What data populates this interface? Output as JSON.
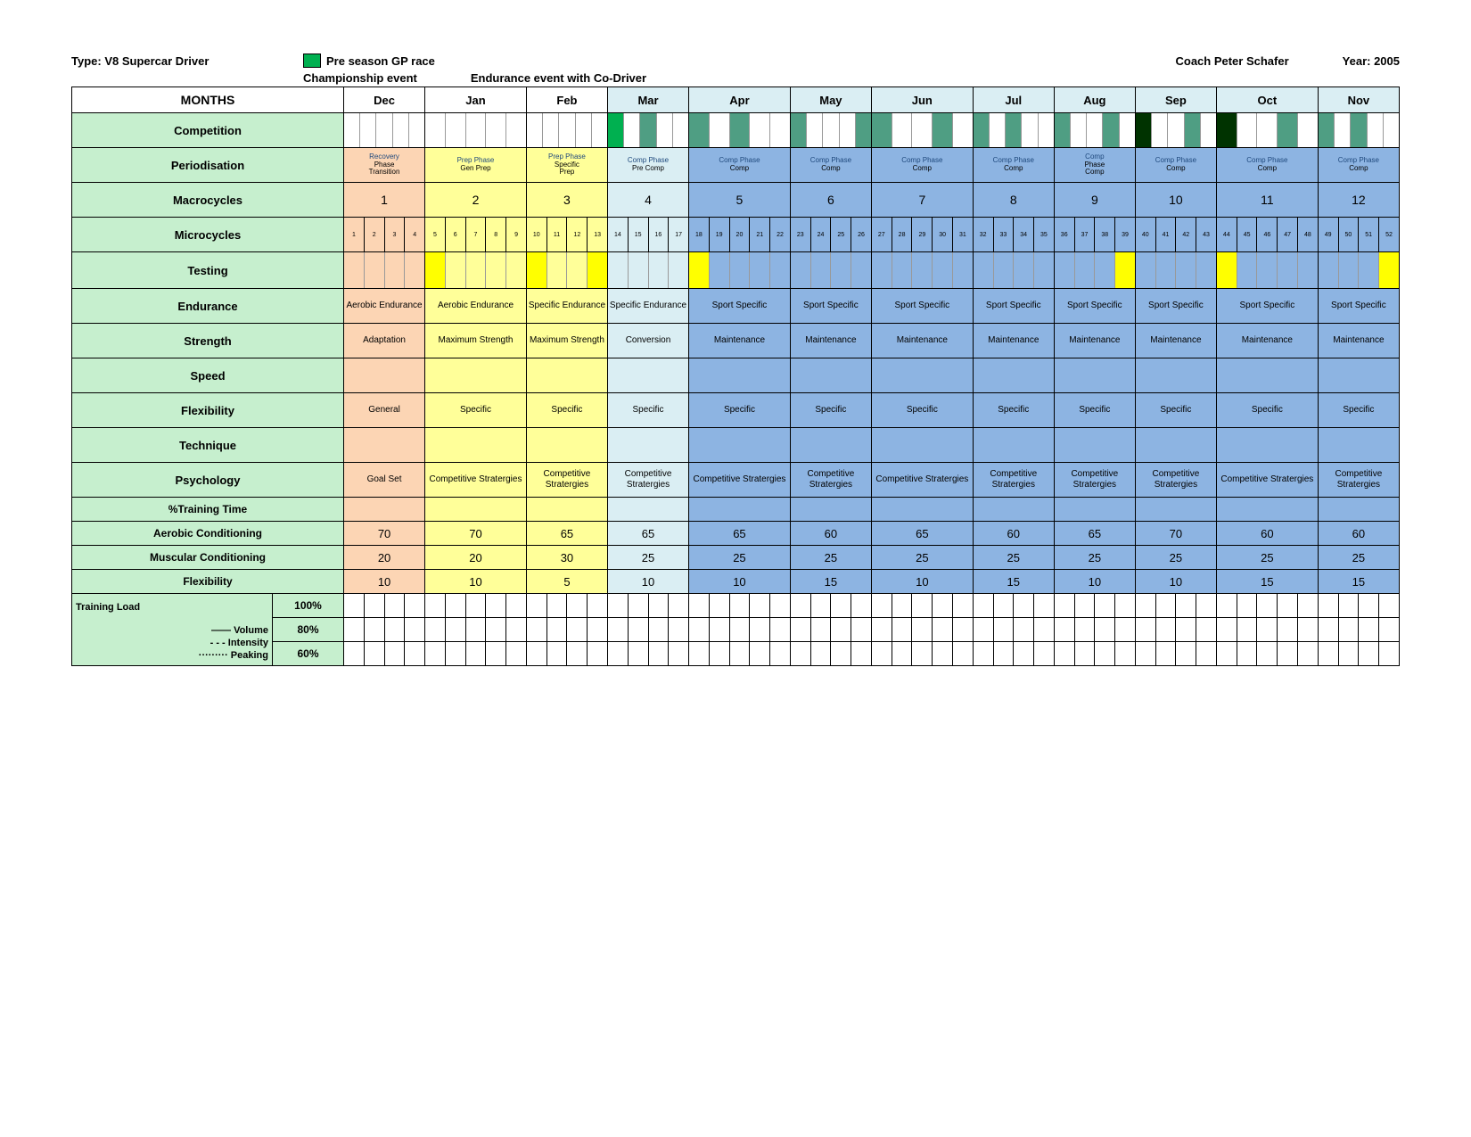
{
  "header": {
    "type_label": "Type: V8 Supercar Driver",
    "legend1_label": "Pre season GP race",
    "legend1_color": "#00b050",
    "legend2_label": "Championship event",
    "legend2_color": "#4f9e83",
    "legend3_label": "Endurance event with Co-Driver",
    "legend3_color": "#003300",
    "coach": "Coach Peter Schafer",
    "year": "Year: 2005"
  },
  "months_label": "MONTHS",
  "months": [
    "Dec",
    "Jan",
    "Feb",
    "Mar",
    "Apr",
    "May",
    "Jun",
    "Jul",
    "Aug",
    "Sep",
    "Oct",
    "Nov"
  ],
  "month_colors": [
    "c-white",
    "c-white",
    "c-white",
    "c-cyan",
    "c-cyan",
    "c-cyan",
    "c-cyan",
    "c-cyan",
    "c-cyan",
    "c-cyan",
    "c-cyan",
    "c-cyan"
  ],
  "body_colors": [
    "c-orange",
    "c-yellow",
    "c-yellow",
    "c-cyan",
    "c-blue",
    "c-blue",
    "c-blue",
    "c-blue",
    "c-blue",
    "c-blue",
    "c-blue",
    "c-blue"
  ],
  "rows": {
    "competition": "Competition",
    "periodisation": "Periodisation",
    "macrocycles": "Macrocycles",
    "microcycles": "Microcycles",
    "testing": "Testing",
    "endurance": "Endurance",
    "strength": "Strength",
    "speed": "Speed",
    "flexibility": "Flexibility",
    "technique": "Technique",
    "psychology": "Psychology",
    "pct": "%Training Time",
    "aerobic": "Aerobic Conditioning",
    "muscular": "Muscular Conditioning",
    "flex2": "Flexibility",
    "tload": "Training Load",
    "volume": "——   Volume",
    "intensity": "- - -  Intensity",
    "peaking": "·········  Peaking",
    "p100": "100%",
    "p80": "80%",
    "p60": "60%"
  },
  "competition_events": [
    [],
    [],
    [],
    [
      {
        "i": 0,
        "c": "#00b050"
      },
      {
        "i": 2,
        "c": "#4f9e83"
      }
    ],
    [
      {
        "i": 0,
        "c": "#4f9e83"
      },
      {
        "i": 2,
        "c": "#4f9e83"
      }
    ],
    [
      {
        "i": 0,
        "c": "#4f9e83"
      },
      {
        "i": 4,
        "c": "#4f9e83"
      }
    ],
    [
      {
        "i": 0,
        "c": "#4f9e83"
      },
      {
        "i": 3,
        "c": "#4f9e83"
      }
    ],
    [
      {
        "i": 0,
        "c": "#4f9e83"
      },
      {
        "i": 2,
        "c": "#4f9e83"
      }
    ],
    [
      {
        "i": 0,
        "c": "#4f9e83"
      },
      {
        "i": 3,
        "c": "#4f9e83"
      }
    ],
    [
      {
        "i": 0,
        "c": "#003300"
      },
      {
        "i": 3,
        "c": "#4f9e83"
      }
    ],
    [
      {
        "i": 0,
        "c": "#003300"
      },
      {
        "i": 3,
        "c": "#4f9e83"
      }
    ],
    [
      {
        "i": 0,
        "c": "#4f9e83"
      },
      {
        "i": 2,
        "c": "#4f9e83"
      }
    ]
  ],
  "periodisation": [
    {
      "l1": "Recovery",
      "l2": "Phase",
      "l3": "Transition"
    },
    {
      "l1": "Prep Phase",
      "l2": "Gen  Prep"
    },
    {
      "l1": "Prep Phase",
      "l2": "Specific",
      "l3": "Prep"
    },
    {
      "l1": "Comp Phase",
      "l2": "Pre Comp"
    },
    {
      "l1": "Comp Phase",
      "l2": "Comp"
    },
    {
      "l1": "Comp Phase",
      "l2": "Comp"
    },
    {
      "l1": "Comp Phase",
      "l2": "Comp"
    },
    {
      "l1": "Comp Phase",
      "l2": "Comp"
    },
    {
      "l1": "Comp",
      "l2": "Phase",
      "l3": "Comp"
    },
    {
      "l1": "Comp Phase",
      "l2": "Comp"
    },
    {
      "l1": "Comp Phase",
      "l2": "Comp"
    },
    {
      "l1": "Comp Phase",
      "l2": "Comp"
    }
  ],
  "macro": [
    "1",
    "2",
    "3",
    "4",
    "5",
    "6",
    "7",
    "8",
    "9",
    "10",
    "11",
    "12"
  ],
  "micro_counts": [
    4,
    5,
    4,
    4,
    5,
    4,
    5,
    4,
    4,
    4,
    5,
    4
  ],
  "testing": [
    [],
    [
      0
    ],
    [
      0,
      3
    ],
    [],
    [
      0
    ],
    [],
    [],
    [],
    [
      3
    ],
    [],
    [
      0
    ],
    [
      3
    ]
  ],
  "endurance": [
    "Aerobic Endurance",
    "Aerobic Endurance",
    "Specific Endurance",
    "Specific Endurance",
    "Sport Specific",
    "Sport Specific",
    "Sport Specific",
    "Sport Specific",
    "Sport Specific",
    "Sport Specific",
    "Sport Specific",
    "Sport Specific"
  ],
  "strength": [
    "Adaptation",
    "Maximum Strength",
    "Maximum Strength",
    "Conversion",
    "Maintenance",
    "Maintenance",
    "Maintenance",
    "Maintenance",
    "Maintenance",
    "Maintenance",
    "Maintenance",
    "Maintenance"
  ],
  "speed": [
    "",
    "",
    "",
    "",
    "",
    "",
    "",
    "",
    "",
    "",
    "",
    ""
  ],
  "flex": [
    "General",
    "Specific",
    "Specific",
    "Specific",
    "Specific",
    "Specific",
    "Specific",
    "Specific",
    "Specific",
    "Specific",
    "Specific",
    "Specific"
  ],
  "technique": [
    "",
    "",
    "",
    "",
    "",
    "",
    "",
    "",
    "",
    "",
    "",
    ""
  ],
  "psych": [
    "Goal Set",
    "Competitive Stratergies",
    "Competitive Stratergies",
    "Competitive Stratergies",
    "Competitive Stratergies",
    "Competitive Stratergies",
    "Competitive Stratergies",
    "Competitive Stratergies",
    "Competitive Stratergies",
    "Competitive Stratergies",
    "Competitive Stratergies",
    "Competitive Stratergies"
  ],
  "aerobic_v": [
    "70",
    "70",
    "65",
    "65",
    "65",
    "60",
    "65",
    "60",
    "65",
    "70",
    "60",
    "60"
  ],
  "muscular_v": [
    "20",
    "20",
    "30",
    "25",
    "25",
    "25",
    "25",
    "25",
    "25",
    "25",
    "25",
    "25"
  ],
  "flex_v": [
    "10",
    "10",
    "5",
    "10",
    "10",
    "15",
    "10",
    "15",
    "10",
    "10",
    "15",
    "15"
  ],
  "colors": {
    "test_yellow": "#ffff00",
    "green_row": "#c6efce"
  }
}
